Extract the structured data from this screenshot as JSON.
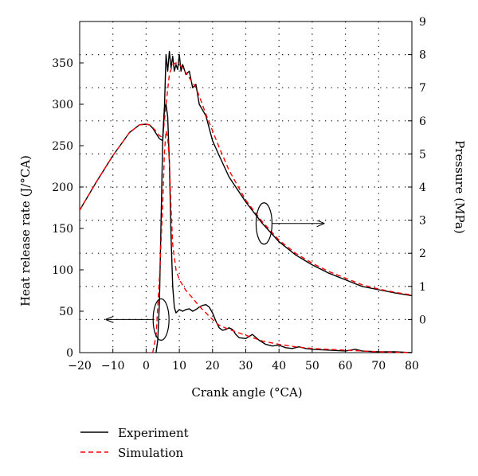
{
  "chart_data": {
    "type": "line",
    "title": "",
    "xlabel": "Crank angle (°CA)",
    "ylabel_left": "Heat release rate (J/°CA)",
    "ylabel_right": "Pressure (MPa)",
    "xlim": [
      -20,
      80
    ],
    "ylim_left": [
      0,
      400
    ],
    "ylim_right": [
      -1,
      9
    ],
    "x_ticks": [
      "−20",
      "−10",
      "0",
      "10",
      "20",
      "30",
      "40",
      "50",
      "60",
      "70",
      "80"
    ],
    "y_left_ticks": [
      "0",
      "50",
      "100",
      "150",
      "200",
      "250",
      "300",
      "350"
    ],
    "y_right_ticks": [
      "0",
      "1",
      "2",
      "3",
      "4",
      "5",
      "6",
      "7",
      "8",
      "9"
    ],
    "grid": "dotted",
    "legend_position": "bottom-left",
    "series": [
      {
        "name": "Experiment",
        "axis": "right",
        "quantity": "pressure",
        "color": "#000000",
        "style": "solid",
        "x": [
          -20,
          -15,
          -10,
          -5,
          -2,
          0,
          1,
          2,
          3,
          4,
          5,
          5.5,
          6,
          6.5,
          7,
          7.5,
          8,
          8.5,
          9,
          9.5,
          10,
          10.5,
          11,
          12,
          13,
          14,
          15,
          16,
          18,
          20,
          22,
          25,
          30,
          35,
          40,
          45,
          50,
          55,
          60,
          65,
          70,
          75,
          80
        ],
        "y": [
          3.3,
          4.15,
          4.95,
          5.65,
          5.88,
          5.9,
          5.88,
          5.78,
          5.62,
          5.46,
          5.4,
          6.3,
          8.0,
          7.5,
          8.1,
          7.6,
          7.95,
          7.5,
          7.7,
          7.55,
          8.0,
          7.5,
          7.7,
          7.4,
          7.5,
          7.0,
          7.1,
          6.5,
          6.15,
          5.4,
          4.95,
          4.3,
          3.55,
          2.9,
          2.35,
          1.95,
          1.65,
          1.4,
          1.2,
          1.0,
          0.9,
          0.8,
          0.72
        ]
      },
      {
        "name": "Simulation",
        "axis": "right",
        "quantity": "pressure",
        "color": "#ff0000",
        "style": "dashed",
        "x": [
          -20,
          -15,
          -10,
          -5,
          -2,
          0,
          1,
          2,
          3,
          4,
          5,
          6,
          7,
          8,
          9,
          10,
          11,
          12,
          13,
          14,
          15,
          16,
          18,
          20,
          22,
          25,
          30,
          35,
          40,
          45,
          50,
          55,
          60,
          65,
          70,
          75,
          80
        ],
        "y": [
          3.3,
          4.15,
          4.95,
          5.65,
          5.88,
          5.9,
          5.88,
          5.8,
          5.68,
          5.55,
          5.5,
          6.5,
          7.4,
          7.7,
          7.75,
          7.7,
          7.6,
          7.45,
          7.3,
          7.15,
          7.0,
          6.75,
          6.2,
          5.7,
          5.2,
          4.5,
          3.6,
          2.95,
          2.4,
          2.0,
          1.7,
          1.45,
          1.25,
          1.05,
          0.92,
          0.82,
          0.74
        ]
      },
      {
        "name": "Experiment",
        "axis": "left",
        "quantity": "heat release rate",
        "color": "#000000",
        "style": "solid",
        "x": [
          3,
          3.5,
          4,
          4.5,
          5,
          5.5,
          6,
          6.5,
          7,
          7.5,
          8,
          8.5,
          9,
          9.5,
          10,
          11,
          12,
          13,
          14,
          15,
          16,
          17,
          18,
          19,
          20,
          21,
          22,
          23,
          24,
          25,
          26,
          27,
          28,
          30,
          32,
          34,
          36,
          38,
          40,
          42,
          44,
          46,
          48,
          50,
          55,
          60,
          63,
          65,
          70,
          75,
          80
        ],
        "y": [
          0,
          15,
          60,
          160,
          260,
          295,
          300,
          285,
          230,
          140,
          80,
          55,
          48,
          50,
          52,
          50,
          52,
          53,
          50,
          52,
          55,
          57,
          58,
          55,
          48,
          38,
          30,
          27,
          28,
          30,
          28,
          22,
          18,
          17,
          22,
          15,
          10,
          8,
          9,
          6,
          5,
          7,
          5,
          4,
          3,
          2,
          4,
          2,
          1,
          1,
          0
        ]
      },
      {
        "name": "Simulation",
        "axis": "left",
        "quantity": "heat release rate",
        "color": "#ff0000",
        "style": "dashed",
        "x": [
          2,
          3,
          4,
          5,
          5.5,
          6,
          6.5,
          7,
          7.5,
          8,
          9,
          10,
          12,
          14,
          16,
          18,
          20,
          22,
          25,
          30,
          35,
          40,
          45,
          50,
          60,
          70,
          80
        ],
        "y": [
          0,
          20,
          90,
          180,
          240,
          268,
          260,
          230,
          175,
          130,
          100,
          88,
          75,
          66,
          56,
          48,
          40,
          33,
          28,
          21,
          14,
          10,
          7,
          5,
          3,
          1,
          0
        ]
      }
    ],
    "legend": [
      {
        "label": "Experiment",
        "color": "#000000",
        "style": "solid"
      },
      {
        "label": "Simulation",
        "color": "#ff0000",
        "style": "dashed"
      }
    ]
  }
}
